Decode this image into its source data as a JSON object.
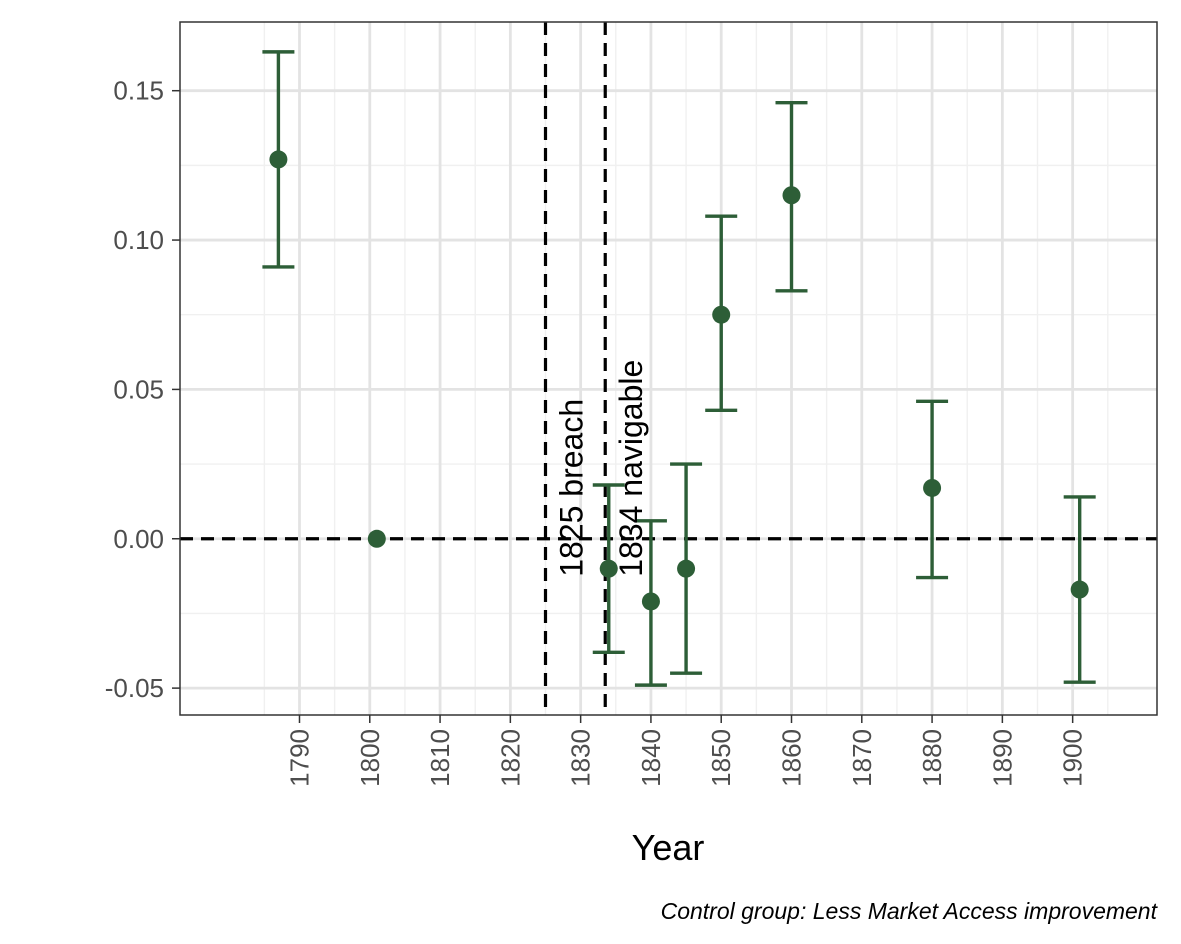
{
  "chart_data": {
    "type": "scatter",
    "subtype": "point-with-error-bars",
    "xlabel": "Year",
    "ylabel": "",
    "caption": "Control group: Less Market Access improvement",
    "xlim": [
      1773,
      1912
    ],
    "ylim": [
      -0.059,
      0.173
    ],
    "x_ticks": [
      1790,
      1800,
      1810,
      1820,
      1830,
      1840,
      1850,
      1860,
      1870,
      1880,
      1890,
      1900
    ],
    "y_ticks": [
      -0.05,
      0.0,
      0.05,
      0.1,
      0.15
    ],
    "y_tick_labels": [
      "-0.05",
      "0.00",
      "0.05",
      "0.10",
      "0.15"
    ],
    "grid": true,
    "reference_line": {
      "y": 0,
      "style": "dashed"
    },
    "event_lines": [
      {
        "x": 1825,
        "label": "1825 breach"
      },
      {
        "x": 1833.5,
        "label": "1834 navigable"
      }
    ],
    "series": [
      {
        "color": "#2d5e37",
        "points": [
          {
            "x": 1787,
            "y": 0.127,
            "lower": 0.091,
            "upper": 0.163
          },
          {
            "x": 1801,
            "y": 0.0
          },
          {
            "x": 1834,
            "y": -0.01,
            "lower": -0.038,
            "upper": 0.018
          },
          {
            "x": 1840,
            "y": -0.021,
            "lower": -0.049,
            "upper": 0.006
          },
          {
            "x": 1845,
            "y": -0.01,
            "lower": -0.045,
            "upper": 0.025
          },
          {
            "x": 1850,
            "y": 0.075,
            "lower": 0.043,
            "upper": 0.108
          },
          {
            "x": 1860,
            "y": 0.115,
            "lower": 0.083,
            "upper": 0.146
          },
          {
            "x": 1880,
            "y": 0.017,
            "lower": -0.013,
            "upper": 0.046
          },
          {
            "x": 1901,
            "y": -0.017,
            "lower": -0.048,
            "upper": 0.014
          }
        ]
      }
    ]
  }
}
